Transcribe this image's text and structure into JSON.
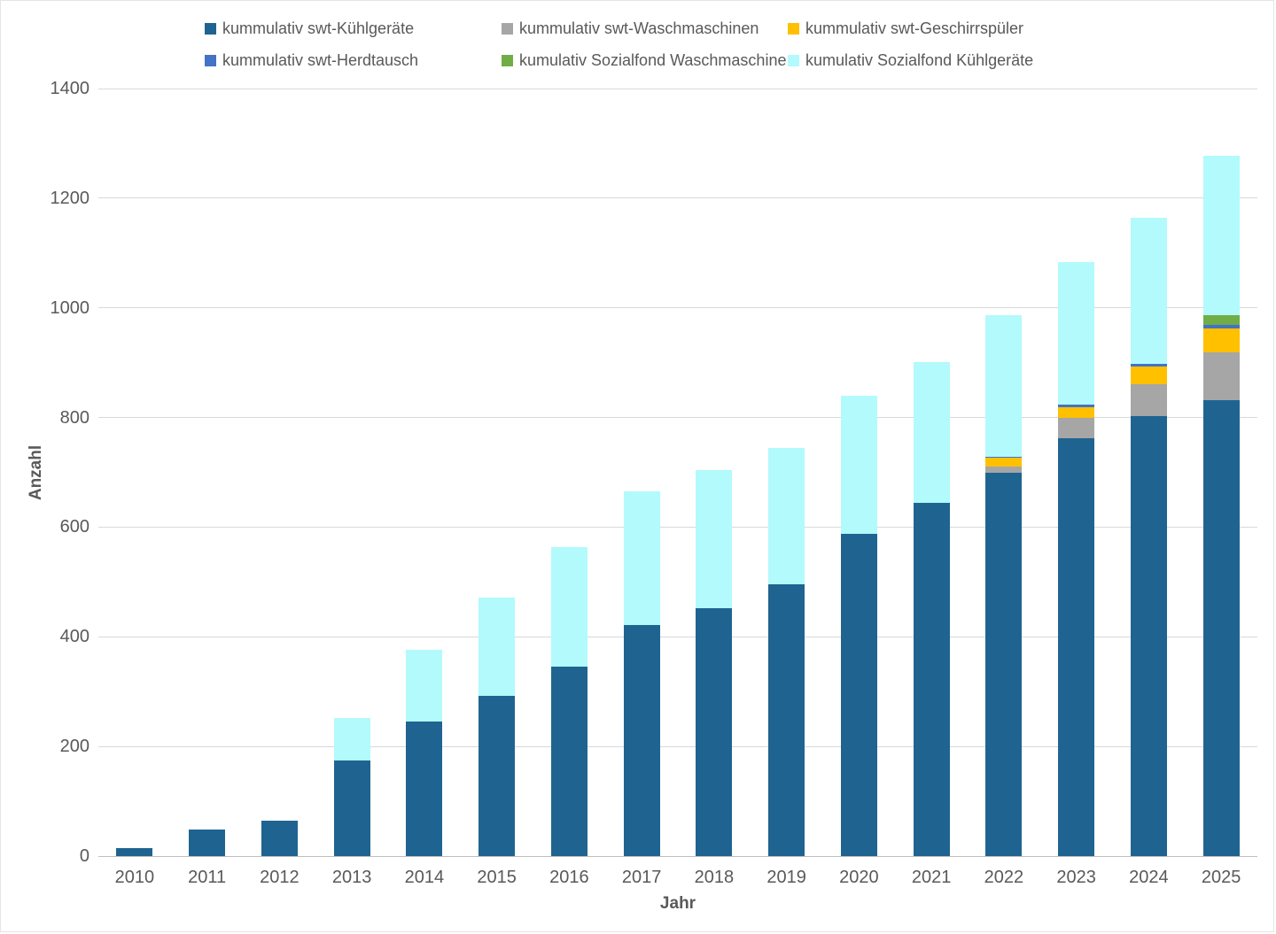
{
  "chart_data": {
    "type": "bar",
    "stacked": true,
    "title": "",
    "xlabel": "Jahr",
    "ylabel": "Anzahl",
    "ylim": [
      0,
      1400
    ],
    "ytick_step": 200,
    "yticks": [
      0,
      200,
      400,
      600,
      800,
      1000,
      1200,
      1400
    ],
    "grid": true,
    "legend_position": "top",
    "categories": [
      "2010",
      "2011",
      "2012",
      "2013",
      "2014",
      "2015",
      "2016",
      "2017",
      "2018",
      "2019",
      "2020",
      "2021",
      "2022",
      "2023",
      "2024",
      "2025"
    ],
    "series": [
      {
        "name": "kummulativ swt-Kühlgeräte",
        "color": "#1F6491",
        "values": [
          15,
          49,
          65,
          174,
          245,
          293,
          346,
          422,
          452,
          495,
          587,
          644,
          699,
          762,
          803,
          832
        ]
      },
      {
        "name": "kummulativ swt-Waschmaschinen",
        "color": "#A6A6A6",
        "values": [
          0,
          0,
          0,
          0,
          0,
          0,
          0,
          0,
          0,
          0,
          0,
          0,
          12,
          38,
          57,
          87
        ]
      },
      {
        "name": "kummulativ swt-Geschirrspüler",
        "color": "#FFC000",
        "values": [
          0,
          0,
          0,
          0,
          0,
          0,
          0,
          0,
          0,
          0,
          0,
          0,
          16,
          19,
          33,
          43
        ]
      },
      {
        "name": "kummulativ swt-Herdtausch",
        "color": "#4472C4",
        "values": [
          0,
          0,
          0,
          0,
          0,
          0,
          0,
          0,
          0,
          0,
          0,
          0,
          2,
          5,
          5,
          7
        ]
      },
      {
        "name": "kumulativ Sozialfond Waschmaschine",
        "color": "#70AD47",
        "values": [
          0,
          0,
          0,
          0,
          0,
          0,
          0,
          0,
          0,
          0,
          0,
          0,
          0,
          0,
          0,
          18
        ]
      },
      {
        "name": "kumulativ Sozialfond Kühlgeräte",
        "color": "#B2FAFC",
        "values": [
          0,
          0,
          0,
          78,
          132,
          178,
          217,
          243,
          252,
          250,
          253,
          257,
          258,
          259,
          266,
          291
        ]
      }
    ],
    "totals": [
      15,
      49,
      65,
      252,
      377,
      471,
      563,
      665,
      704,
      745,
      840,
      901,
      987,
      1083,
      1164,
      1278
    ]
  },
  "axis_titles": {
    "x": "Jahr",
    "y": "Anzahl"
  }
}
